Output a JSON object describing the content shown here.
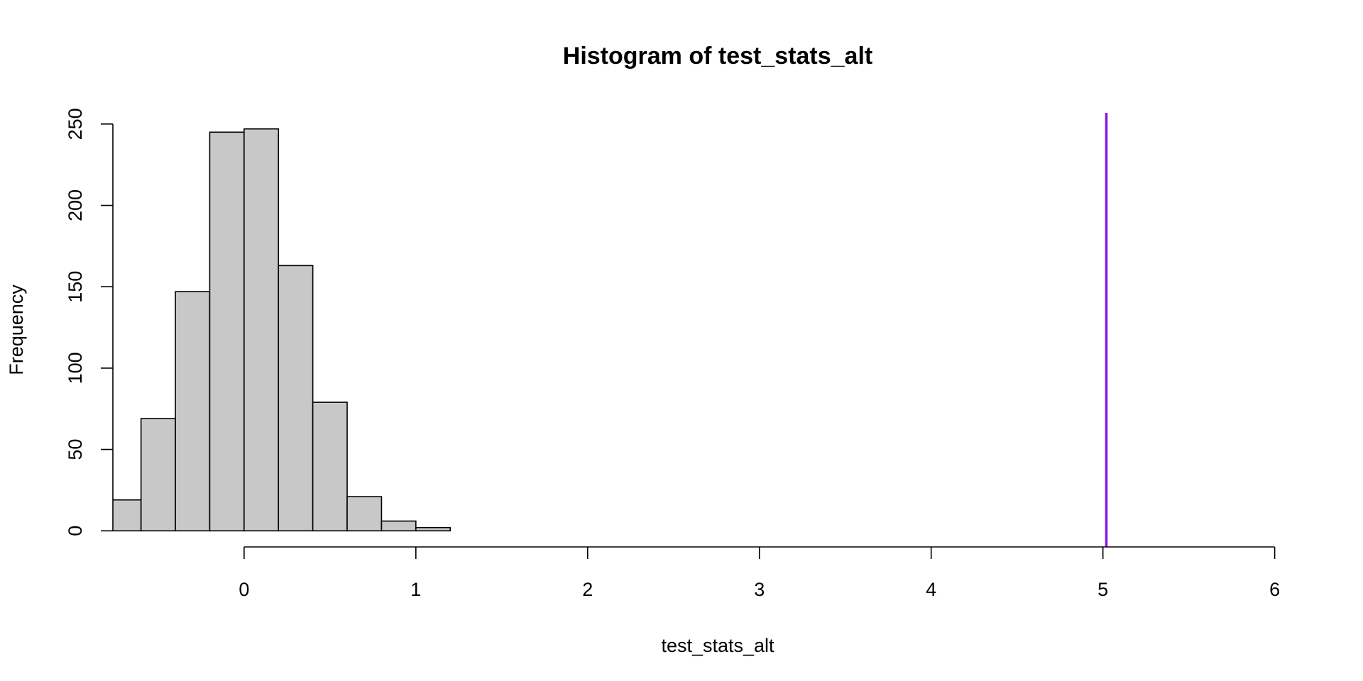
{
  "chart_data": {
    "type": "histogram",
    "title": "Histogram of test_stats_alt",
    "x_label": "test_stats_alt",
    "y_label": "Frequency",
    "bins": [
      -0.8,
      -0.6,
      -0.4,
      -0.2,
      0,
      0.2,
      0.4,
      0.6,
      0.8,
      1.0,
      1.2
    ],
    "counts": [
      19,
      69,
      147,
      245,
      247,
      163,
      79,
      21,
      6,
      2
    ],
    "color": "#c8c8c8",
    "xlim": [
      -0.764,
      6.2
    ],
    "ylim": [
      -9.9,
      256.9
    ],
    "xticks": [
      0,
      1,
      2,
      3,
      4,
      5,
      6
    ],
    "yticks": [
      0,
      50,
      100,
      150,
      200,
      250
    ],
    "vline": {
      "x": 5.02,
      "color": "#8a16e0"
    }
  }
}
